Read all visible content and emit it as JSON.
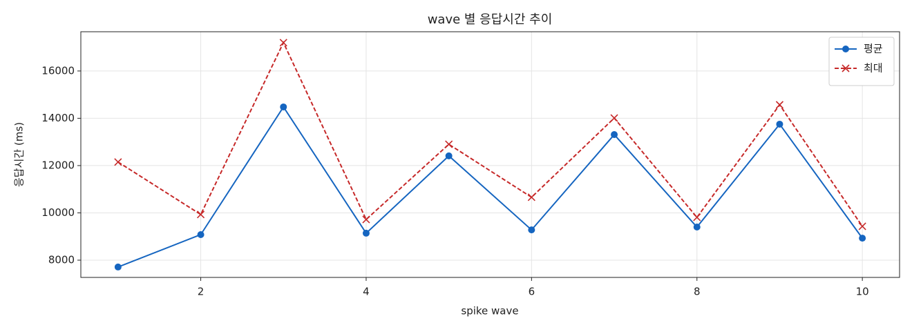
{
  "chart_data": {
    "type": "line",
    "title": "wave 별 응답시간 추이",
    "xlabel": "spike wave",
    "ylabel": "응답시간 (ms)",
    "x": [
      1,
      2,
      3,
      4,
      5,
      6,
      7,
      8,
      9,
      10
    ],
    "series": [
      {
        "name": "평균",
        "color": "#1565c0",
        "linestyle": "solid",
        "marker": "circle",
        "values": [
          7710,
          9080,
          14480,
          9140,
          12410,
          9280,
          13310,
          9400,
          13750,
          8930
        ]
      },
      {
        "name": "최대",
        "color": "#c62828",
        "linestyle": "dashed",
        "marker": "x",
        "values": [
          12150,
          9930,
          17200,
          9720,
          12900,
          10660,
          14010,
          9810,
          14570,
          9430
        ]
      }
    ],
    "xlim": [
      0.55,
      10.45
    ],
    "ylim": [
      7270,
      17660
    ],
    "xticks": [
      2,
      4,
      6,
      8,
      10
    ],
    "yticks": [
      8000,
      10000,
      12000,
      14000,
      16000
    ],
    "grid": true,
    "legend": "upper right"
  }
}
